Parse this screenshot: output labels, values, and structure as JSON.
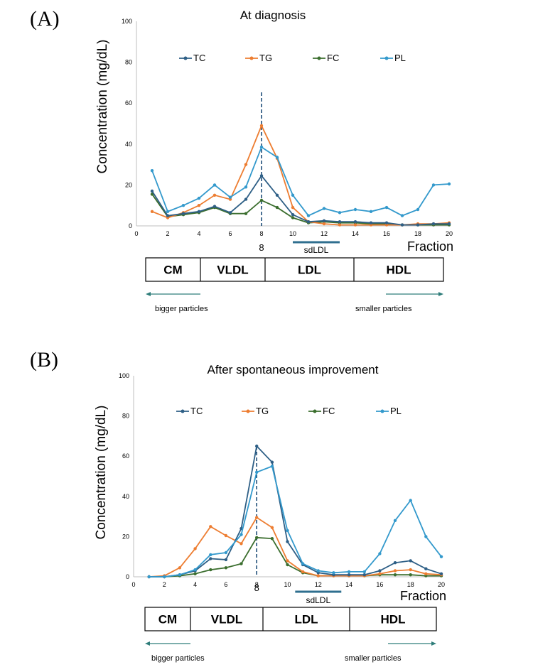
{
  "colors": {
    "TC": "#2e5f86",
    "TG": "#ed7d31",
    "FC": "#3b6e2e",
    "PL": "#3399cc",
    "arrow": "#2f7d7a",
    "dashed": "#1f4e79",
    "sdldl_bar": "#2f6f8f"
  },
  "chart_data": [
    {
      "type": "line",
      "panel_label": "(A)",
      "title": "At diagnosis",
      "xlabel": "Fraction",
      "ylabel": "Concentration (mg/dL)",
      "xlim": [
        0,
        20
      ],
      "ylim": [
        0,
        100
      ],
      "xticks": [
        "0",
        "2",
        "4",
        "6",
        "8",
        "10",
        "12",
        "14",
        "16",
        "18",
        "20"
      ],
      "yticks": [
        "0",
        "20",
        "40",
        "60",
        "80",
        "100"
      ],
      "legend_position": "top",
      "x": [
        1,
        2,
        3,
        4,
        5,
        6,
        7,
        8,
        9,
        10,
        11,
        12,
        13,
        14,
        15,
        16,
        17,
        18,
        19,
        20
      ],
      "series": [
        {
          "name": "TC",
          "values": [
            17,
            5,
            6,
            7,
            9.5,
            6.5,
            13,
            24.5,
            15,
            5.5,
            2,
            2.5,
            2,
            2,
            1.5,
            1.5,
            0.5,
            0.5,
            1,
            1
          ]
        },
        {
          "name": "TG",
          "values": [
            7,
            4,
            6.5,
            10,
            15,
            13,
            30,
            49,
            33,
            9,
            2,
            1,
            0.5,
            0.5,
            0.5,
            0.5,
            0.5,
            1,
            1,
            1.5
          ]
        },
        {
          "name": "FC",
          "values": [
            15.5,
            4.5,
            5.5,
            6.5,
            9,
            6,
            6,
            12.5,
            9,
            4,
            1.5,
            2,
            1.5,
            1.5,
            1,
            1,
            0.5,
            0.5,
            0.5,
            0.5
          ]
        },
        {
          "name": "PL",
          "values": [
            27,
            7,
            10,
            13.5,
            20,
            14,
            19,
            38.5,
            33.5,
            15,
            5,
            8.5,
            6.5,
            8,
            7,
            9,
            5,
            8,
            20,
            20.5
          ]
        }
      ],
      "highlight_x": 8,
      "highlight_label": "8",
      "sdldl": {
        "label": "sdLDL",
        "from": 10,
        "to": 13
      },
      "classes": [
        {
          "label": "CM",
          "from": 1,
          "to": 4
        },
        {
          "label": "VLDL",
          "from": 4,
          "to": 9
        },
        {
          "label": "LDL",
          "from": 9,
          "to": 15
        },
        {
          "label": "HDL",
          "from": 15,
          "to": 20
        }
      ],
      "left_arrow_label": "bigger particles",
      "right_arrow_label": "smaller particles"
    },
    {
      "type": "line",
      "panel_label": "(B)",
      "title": "After spontaneous improvement",
      "xlabel": "Fraction",
      "ylabel": "Concentration (mg/dL)",
      "xlim": [
        0,
        20
      ],
      "ylim": [
        0,
        100
      ],
      "xticks": [
        "0",
        "2",
        "4",
        "6",
        "8",
        "10",
        "12",
        "14",
        "16",
        "18",
        "20"
      ],
      "yticks": [
        "0",
        "20",
        "40",
        "60",
        "80",
        "100"
      ],
      "legend_position": "top",
      "x": [
        1,
        2,
        3,
        4,
        5,
        6,
        7,
        8,
        9,
        10,
        11,
        12,
        13,
        14,
        15,
        16,
        17,
        18,
        19,
        20
      ],
      "series": [
        {
          "name": "TC",
          "values": [
            0,
            0,
            1,
            3,
            9,
            8.5,
            24,
            65,
            57,
            17.5,
            6,
            2,
            1,
            1,
            1,
            3,
            7,
            8,
            4,
            1.5
          ]
        },
        {
          "name": "TG",
          "values": [
            0,
            0.5,
            4.5,
            14,
            25,
            20.5,
            16.5,
            29.5,
            24.5,
            8,
            2.5,
            0.5,
            0.5,
            0.5,
            0.5,
            1.5,
            3,
            3.5,
            1.5,
            1
          ]
        },
        {
          "name": "FC",
          "values": [
            0,
            0,
            0.5,
            1.5,
            3.5,
            4.5,
            6.5,
            19.5,
            19,
            6,
            2,
            0.5,
            0.5,
            0.5,
            0.5,
            1,
            1,
            1,
            0.5,
            0.5
          ]
        },
        {
          "name": "PL",
          "values": [
            0,
            0,
            1,
            3.5,
            11,
            12,
            21,
            52,
            55,
            23,
            6.5,
            3,
            2,
            2.5,
            2.5,
            11.5,
            28,
            38,
            20,
            10
          ]
        }
      ],
      "highlight_x": 8,
      "highlight_label": "8",
      "sdldl": {
        "label": "sdLDL",
        "from": 10.5,
        "to": 13.5
      },
      "classes": [
        {
          "label": "CM",
          "from": 1,
          "to": 4
        },
        {
          "label": "VLDL",
          "from": 4,
          "to": 9
        },
        {
          "label": "LDL",
          "from": 9,
          "to": 15
        },
        {
          "label": "HDL",
          "from": 15,
          "to": 20
        }
      ],
      "left_arrow_label": "bigger particles",
      "right_arrow_label": "smaller particles"
    }
  ]
}
